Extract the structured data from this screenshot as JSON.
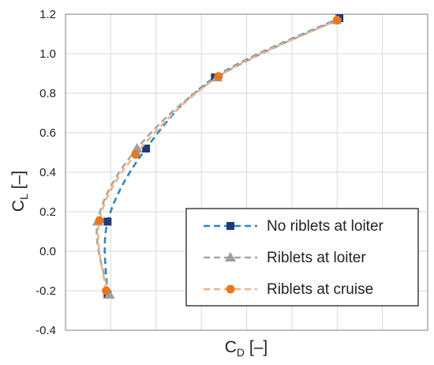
{
  "chart_data": {
    "type": "line",
    "title": "",
    "xlabel": "C",
    "xlabel_sub": "D",
    "xlabel_suffix": " [–]",
    "ylabel": "C",
    "ylabel_sub": "L",
    "ylabel_suffix": " [–]",
    "ylim": [
      -0.4,
      1.2
    ],
    "yticks": [
      "-0.4",
      "-0.2",
      "0.0",
      "0.2",
      "0.4",
      "0.6",
      "0.8",
      "1.0",
      "1.2"
    ],
    "xlim": [
      0,
      8
    ],
    "x_tick_labels_shown": false,
    "grid": true,
    "legend_position": "bottom-right",
    "series": [
      {
        "name": "No riblets at loiter",
        "color": "#1F3A7A",
        "line_color": "#2E86C1",
        "marker": "square",
        "points": [
          {
            "x": 0.93,
            "y": -0.22
          },
          {
            "x": 0.93,
            "y": 0.15
          },
          {
            "x": 1.78,
            "y": 0.52
          },
          {
            "x": 3.3,
            "y": 0.88
          },
          {
            "x": 6.05,
            "y": 1.18
          }
        ]
      },
      {
        "name": "Riblets at loiter",
        "color": "#9E9E9E",
        "line_color": "#A6A6A6",
        "marker": "triangle",
        "points": [
          {
            "x": 0.97,
            "y": -0.22
          },
          {
            "x": 0.71,
            "y": 0.15
          },
          {
            "x": 1.58,
            "y": 0.52
          },
          {
            "x": 3.35,
            "y": 0.88
          },
          {
            "x": 5.98,
            "y": 1.17
          }
        ]
      },
      {
        "name": "Riblets at cruise",
        "color": "#E87722",
        "line_color": "#F4B183",
        "marker": "circle",
        "points": [
          {
            "x": 0.9,
            "y": -0.2
          },
          {
            "x": 0.75,
            "y": 0.155
          },
          {
            "x": 1.55,
            "y": 0.49
          },
          {
            "x": 3.38,
            "y": 0.885
          },
          {
            "x": 6.0,
            "y": 1.17
          }
        ]
      }
    ]
  }
}
